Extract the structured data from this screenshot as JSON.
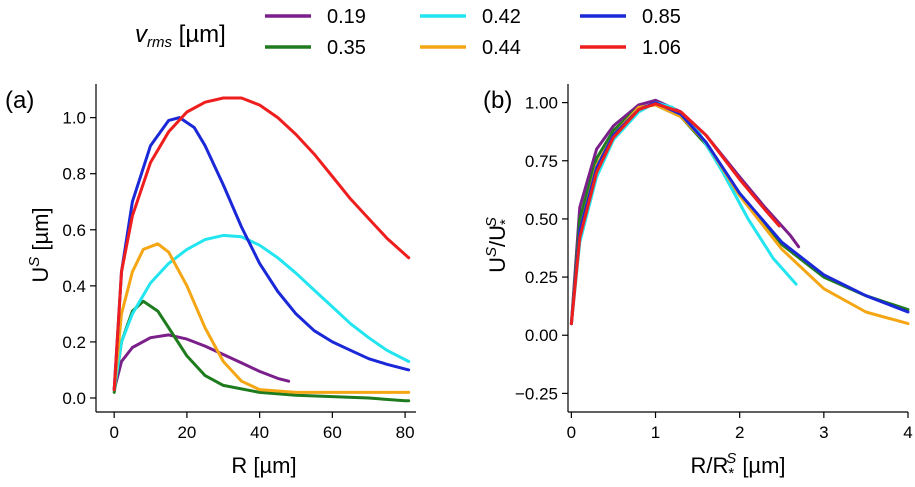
{
  "legend": {
    "title_var": "v",
    "title_sub": "rms",
    "title_unit": " [µm]",
    "placement": "top-center",
    "columns": 3
  },
  "chart_data": [
    {
      "panel": "(a)",
      "type": "line",
      "xlabel": "R [µm]",
      "ylabel_main": "U",
      "ylabel_sup": "S",
      "ylabel_unit": " [µm]",
      "xlim": [
        -5,
        83
      ],
      "ylim": [
        -0.05,
        1.12
      ],
      "xticks": [
        0,
        20,
        40,
        60,
        80
      ],
      "yticks": [
        0.0,
        0.2,
        0.4,
        0.6,
        0.8,
        1.0
      ],
      "xtick_labels": [
        "0",
        "20",
        "40",
        "60",
        "80"
      ],
      "ytick_labels": [
        "0.0",
        "0.2",
        "0.4",
        "0.6",
        "0.8",
        "1.0"
      ],
      "grid": false,
      "series": [
        {
          "name": "0.19",
          "color": "#7b1f8a",
          "x": [
            0,
            2,
            5,
            10,
            15,
            20,
            25,
            30,
            35,
            40,
            45,
            48
          ],
          "y": [
            0.03,
            0.13,
            0.18,
            0.215,
            0.225,
            0.21,
            0.185,
            0.155,
            0.125,
            0.095,
            0.07,
            0.06
          ]
        },
        {
          "name": "0.35",
          "color": "#1e7b1e",
          "x": [
            0,
            2,
            5,
            8,
            12,
            16,
            20,
            25,
            30,
            40,
            50,
            60,
            70,
            80,
            81
          ],
          "y": [
            0.02,
            0.2,
            0.31,
            0.345,
            0.31,
            0.23,
            0.15,
            0.08,
            0.045,
            0.02,
            0.01,
            0.005,
            0.0,
            -0.01,
            -0.01
          ]
        },
        {
          "name": "0.42",
          "color": "#22e5f0",
          "x": [
            0,
            2,
            5,
            10,
            15,
            20,
            25,
            30,
            35,
            40,
            45,
            50,
            55,
            60,
            65,
            70,
            75,
            81
          ],
          "y": [
            0.03,
            0.2,
            0.3,
            0.41,
            0.48,
            0.53,
            0.565,
            0.58,
            0.575,
            0.545,
            0.5,
            0.445,
            0.385,
            0.325,
            0.265,
            0.215,
            0.17,
            0.13
          ]
        },
        {
          "name": "0.44",
          "color": "#f5a615",
          "x": [
            0,
            2,
            5,
            8,
            12,
            15,
            20,
            25,
            30,
            35,
            40,
            50,
            60,
            70,
            81
          ],
          "y": [
            0.03,
            0.3,
            0.45,
            0.53,
            0.55,
            0.52,
            0.4,
            0.25,
            0.13,
            0.06,
            0.03,
            0.02,
            0.02,
            0.02,
            0.02
          ]
        },
        {
          "name": "0.85",
          "color": "#1a28d8",
          "x": [
            0,
            2,
            5,
            10,
            15,
            18,
            22,
            25,
            30,
            35,
            40,
            45,
            50,
            55,
            60,
            65,
            70,
            75,
            81
          ],
          "y": [
            0.03,
            0.45,
            0.7,
            0.9,
            0.99,
            1.0,
            0.965,
            0.9,
            0.76,
            0.61,
            0.48,
            0.38,
            0.3,
            0.24,
            0.2,
            0.17,
            0.14,
            0.12,
            0.1
          ]
        },
        {
          "name": "1.06",
          "color": "#ef1e1e",
          "x": [
            0,
            2,
            5,
            10,
            15,
            20,
            25,
            30,
            35,
            40,
            45,
            50,
            55,
            60,
            65,
            70,
            75,
            81
          ],
          "y": [
            0.03,
            0.45,
            0.65,
            0.84,
            0.95,
            1.02,
            1.055,
            1.07,
            1.07,
            1.045,
            1.0,
            0.94,
            0.87,
            0.79,
            0.71,
            0.64,
            0.57,
            0.5
          ]
        }
      ]
    },
    {
      "panel": "(b)",
      "type": "line",
      "xlabel_main": "R/R",
      "xlabel_sub": "*",
      "xlabel_sup": "S",
      "xlabel_unit": " [µm]",
      "ylabel_main": "U",
      "ylabel_sup": "S",
      "ylabel_mid": "/U",
      "ylabel_sub": "*",
      "ylabel_sup2": "S",
      "xlim": [
        -0.04,
        4.0
      ],
      "ylim": [
        -0.33,
        1.08
      ],
      "xticks": [
        0,
        1,
        2,
        3,
        4
      ],
      "yticks": [
        -0.25,
        0.0,
        0.25,
        0.5,
        0.75,
        1.0
      ],
      "xtick_labels": [
        "0",
        "1",
        "2",
        "3",
        "4"
      ],
      "ytick_labels": [
        "−0.25",
        "0.00",
        "0.25",
        "0.50",
        "0.75",
        "1.00"
      ],
      "grid": false,
      "series": [
        {
          "name": "0.19",
          "color": "#7b1f8a",
          "x": [
            0,
            0.1,
            0.3,
            0.5,
            0.8,
            1.0,
            1.3,
            1.6,
            2.0,
            2.3,
            2.6,
            2.7
          ],
          "y": [
            0.05,
            0.55,
            0.8,
            0.9,
            0.99,
            1.01,
            0.96,
            0.86,
            0.68,
            0.55,
            0.43,
            0.38
          ]
        },
        {
          "name": "0.35",
          "color": "#1e7b1e",
          "x": [
            0,
            0.1,
            0.3,
            0.5,
            0.8,
            1.0,
            1.3,
            1.6,
            2.0,
            2.5,
            3.0,
            3.5,
            4.0
          ],
          "y": [
            0.05,
            0.5,
            0.76,
            0.88,
            0.98,
            0.99,
            0.94,
            0.82,
            0.6,
            0.39,
            0.25,
            0.17,
            0.11
          ]
        },
        {
          "name": "0.42",
          "color": "#22e5f0",
          "x": [
            0,
            0.1,
            0.3,
            0.5,
            0.8,
            1.0,
            1.2,
            1.5,
            1.8,
            2.1,
            2.4,
            2.67
          ],
          "y": [
            0.05,
            0.4,
            0.68,
            0.84,
            0.96,
            1.0,
            0.98,
            0.88,
            0.7,
            0.5,
            0.33,
            0.22
          ]
        },
        {
          "name": "0.44",
          "color": "#f5a615",
          "x": [
            0,
            0.1,
            0.3,
            0.5,
            0.8,
            1.0,
            1.3,
            1.6,
            2.0,
            2.5,
            3.0,
            3.5,
            4.0
          ],
          "y": [
            0.05,
            0.45,
            0.73,
            0.86,
            0.98,
            0.99,
            0.94,
            0.83,
            0.6,
            0.37,
            0.2,
            0.1,
            0.05
          ]
        },
        {
          "name": "0.85",
          "color": "#1a28d8",
          "x": [
            0,
            0.1,
            0.3,
            0.5,
            0.8,
            1.0,
            1.3,
            1.6,
            2.0,
            2.5,
            3.0,
            3.5,
            4.0
          ],
          "y": [
            0.05,
            0.45,
            0.72,
            0.86,
            0.97,
            1.0,
            0.95,
            0.83,
            0.61,
            0.4,
            0.26,
            0.17,
            0.1
          ]
        },
        {
          "name": "1.06",
          "color": "#ef1e1e",
          "x": [
            0,
            0.1,
            0.3,
            0.5,
            0.8,
            1.0,
            1.3,
            1.6,
            2.0,
            2.3,
            2.47
          ],
          "y": [
            0.05,
            0.42,
            0.7,
            0.85,
            0.97,
            0.995,
            0.96,
            0.86,
            0.67,
            0.54,
            0.47
          ]
        }
      ]
    }
  ]
}
